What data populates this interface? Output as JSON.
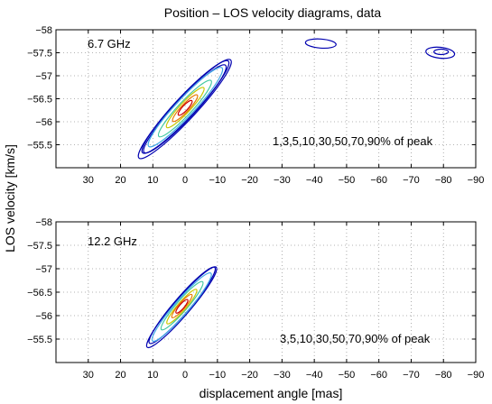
{
  "figure": {
    "title": "Position – LOS velocity diagrams, data",
    "xlabel": "displacement angle [mas]",
    "ylabel": "LOS velocity [km/s]"
  },
  "chart_data": [
    {
      "type": "contour",
      "panel_label": "6.7 GHz",
      "annotation": "1,3,5,10,30,50,70,90% of peak",
      "xlim": [
        40,
        -90
      ],
      "ylim": [
        -55.0,
        -58.0
      ],
      "xticks": [
        30,
        20,
        10,
        0,
        -10,
        -20,
        -30,
        -40,
        -50,
        -60,
        -70,
        -80,
        -90
      ],
      "xtick_labels": [
        "30",
        "20",
        "10",
        "0",
        "−10",
        "−20",
        "−30",
        "−40",
        "−50",
        "−60",
        "−70",
        "−80",
        "−90"
      ],
      "yticks": [
        -55.5,
        -56,
        -56.5,
        -57,
        -57.5,
        -58
      ],
      "ytick_labels": [
        "−55.5",
        "−56",
        "−56.5",
        "−57",
        "−57.5",
        "−58"
      ],
      "grid": true,
      "main_component": {
        "center_x": 0,
        "center_v": -56.3,
        "gradient_mas_per_kms": -13.3
      },
      "secondary_components": [
        {
          "center_x": -42,
          "center_v": -57.7
        },
        {
          "center_x": -79,
          "center_v": -57.5
        }
      ],
      "levels_percent_of_peak": [
        1,
        3,
        5,
        10,
        30,
        50,
        70,
        90
      ]
    },
    {
      "type": "contour",
      "panel_label": "12.2 GHz",
      "annotation": "3,5,10,30,50,70,90% of peak",
      "xlim": [
        40,
        -90
      ],
      "ylim": [
        -55.0,
        -58.0
      ],
      "xticks": [
        30,
        20,
        10,
        0,
        -10,
        -20,
        -30,
        -40,
        -50,
        -60,
        -70,
        -80,
        -90
      ],
      "xtick_labels": [
        "30",
        "20",
        "10",
        "0",
        "−10",
        "−20",
        "−30",
        "−40",
        "−50",
        "−60",
        "−70",
        "−80",
        "−90"
      ],
      "yticks": [
        -55.5,
        -56,
        -56.5,
        -57,
        -57.5,
        -58
      ],
      "ytick_labels": [
        "−55.5",
        "−56",
        "−56.5",
        "−57",
        "−57.5",
        "−58"
      ],
      "grid": true,
      "main_component": {
        "center_x": 1,
        "center_v": -56.2,
        "gradient_mas_per_kms": -12.5
      },
      "levels_percent_of_peak": [
        3,
        5,
        10,
        30,
        50,
        70,
        90
      ]
    }
  ],
  "colors": {
    "level_90": "#cc0000",
    "level_70": "#e87800",
    "level_50": "#c8c800",
    "level_30": "#40c8a0",
    "level_10": "#40a8e8",
    "level_low": "#0000b0",
    "grid": "#9a9a9a"
  }
}
